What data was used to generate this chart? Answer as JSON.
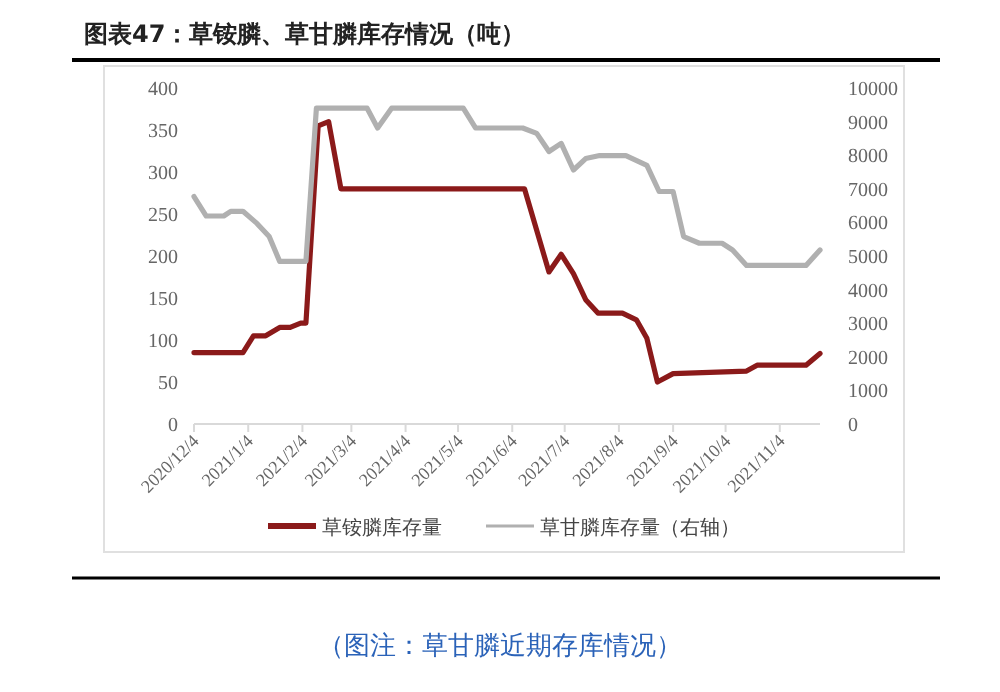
{
  "chart_data": {
    "type": "line",
    "title": "图表47：草铵膦、草甘膦库存情况（吨）",
    "annotations": [
      "（图注：草甘膦近期存库情况）"
    ],
    "xlim": [
      "2020-12-04",
      "2021-11-27"
    ],
    "xticks": [
      {
        "value": "2020-12-04",
        "label": "2020/12/4"
      },
      {
        "value": "2021-01-04",
        "label": "2021/1/4"
      },
      {
        "value": "2021-02-04",
        "label": "2021/2/4"
      },
      {
        "value": "2021-03-04",
        "label": "2021/3/4"
      },
      {
        "value": "2021-04-04",
        "label": "2021/4/4"
      },
      {
        "value": "2021-05-04",
        "label": "2021/5/4"
      },
      {
        "value": "2021-06-04",
        "label": "2021/6/4"
      },
      {
        "value": "2021-07-04",
        "label": "2021/7/4"
      },
      {
        "value": "2021-08-04",
        "label": "2021/8/4"
      },
      {
        "value": "2021-09-04",
        "label": "2021/9/4"
      },
      {
        "value": "2021-10-04",
        "label": "2021/10/4"
      },
      {
        "value": "2021-11-04",
        "label": "2021/11/4"
      }
    ],
    "ylim": [
      0,
      400
    ],
    "yticks": [
      0,
      50,
      100,
      150,
      200,
      250,
      300,
      350,
      400
    ],
    "y2lim": [
      0,
      10000
    ],
    "y2ticks": [
      0,
      1000,
      2000,
      3000,
      4000,
      5000,
      6000,
      7000,
      8000,
      9000,
      10000
    ],
    "grid": false,
    "legend": "bottom",
    "marker": "none",
    "line_style": "solid",
    "series": [
      {
        "name": "草铵膦库存量",
        "color": "#8b1a1a",
        "x": [
          "2020-12-04",
          "2021-01-01",
          "2021-01-07",
          "2021-01-14",
          "2021-01-22",
          "2021-01-28",
          "2021-02-03",
          "2021-02-06",
          "2021-02-13",
          "2021-02-19",
          "2021-02-26",
          "2021-06-11",
          "2021-06-25",
          "2021-07-02",
          "2021-07-09",
          "2021-07-16",
          "2021-07-23",
          "2021-08-06",
          "2021-08-14",
          "2021-08-20",
          "2021-08-26",
          "2021-09-04",
          "2021-10-16",
          "2021-10-22",
          "2021-11-19",
          "2021-11-27"
        ],
        "values": [
          85,
          85,
          105,
          105,
          115,
          115,
          120,
          120,
          355,
          360,
          280,
          280,
          181,
          202,
          179,
          148,
          132,
          132,
          124,
          102,
          50,
          60,
          63,
          70,
          70,
          84
        ]
      },
      {
        "name": "草甘膦库存量（右轴）",
        "color": "#b0b0b0",
        "axis": "y2",
        "x": [
          "2020-12-04",
          "2020-12-11",
          "2020-12-21",
          "2020-12-25",
          "2021-01-01",
          "2021-01-09",
          "2021-01-16",
          "2021-01-22",
          "2021-02-06",
          "2021-02-12",
          "2021-03-13",
          "2021-03-19",
          "2021-03-27",
          "2021-05-07",
          "2021-05-14",
          "2021-06-10",
          "2021-06-18",
          "2021-06-25",
          "2021-07-02",
          "2021-07-09",
          "2021-07-16",
          "2021-07-24",
          "2021-08-08",
          "2021-08-20",
          "2021-08-27",
          "2021-09-04",
          "2021-09-10",
          "2021-09-19",
          "2021-10-02",
          "2021-10-08",
          "2021-10-16",
          "2021-11-19",
          "2021-11-27"
        ],
        "values": [
          6770,
          6190,
          6190,
          6330,
          6330,
          5970,
          5580,
          4840,
          4840,
          9400,
          9400,
          8810,
          9400,
          9400,
          8810,
          8810,
          8650,
          8110,
          8350,
          7560,
          7900,
          7990,
          7990,
          7700,
          6920,
          6920,
          5580,
          5380,
          5380,
          5180,
          4720,
          4720,
          5180
        ]
      }
    ]
  }
}
